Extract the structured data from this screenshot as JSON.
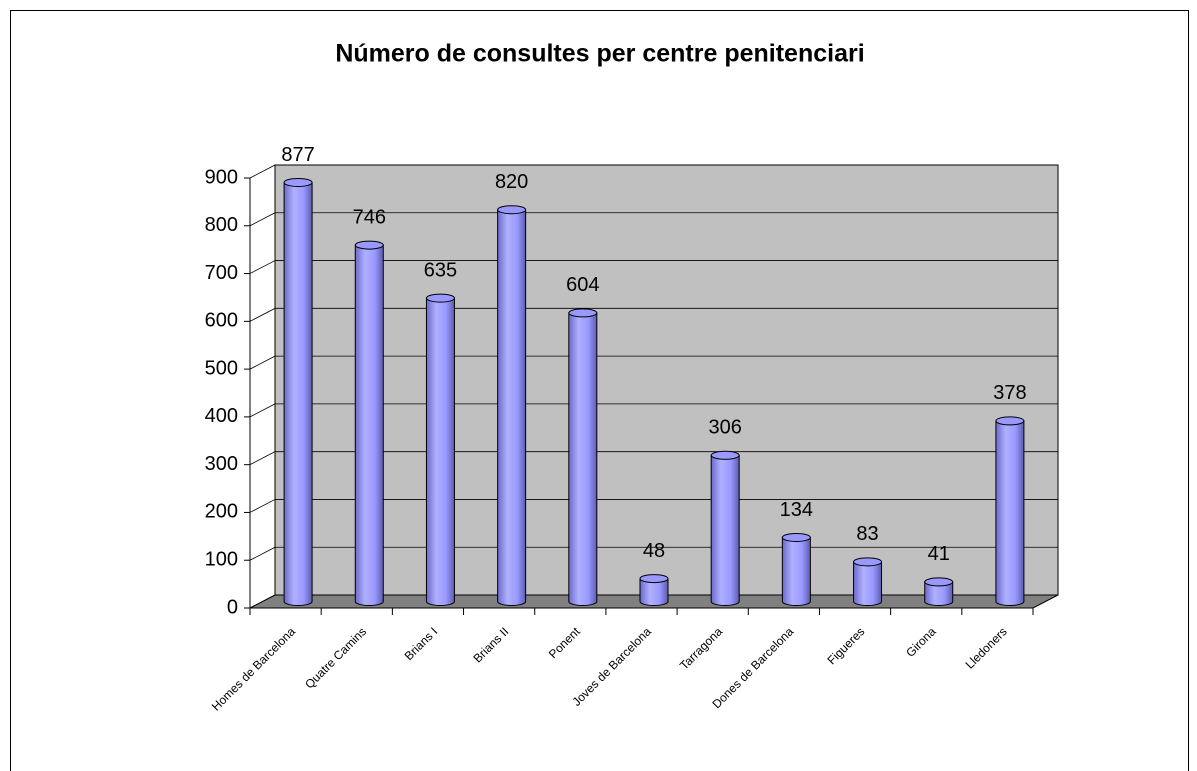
{
  "chart_data": {
    "type": "bar",
    "title": "Número de consultes per centre penitenciari",
    "categories": [
      "Homes de Barcelona",
      "Quatre Camins",
      "Brians I",
      "Brians II",
      "Ponent",
      "Joves de Barcelona",
      "Tarragona",
      "Dones de Barcelona",
      "Figueres",
      "Girona",
      "Lledoners"
    ],
    "values": [
      877,
      746,
      635,
      820,
      604,
      48,
      306,
      134,
      83,
      41,
      378
    ],
    "color": "#9999ff",
    "ylim": [
      0,
      900
    ],
    "yticks": [
      0,
      100,
      200,
      300,
      400,
      500,
      600,
      700,
      800,
      900
    ],
    "grid": true
  }
}
